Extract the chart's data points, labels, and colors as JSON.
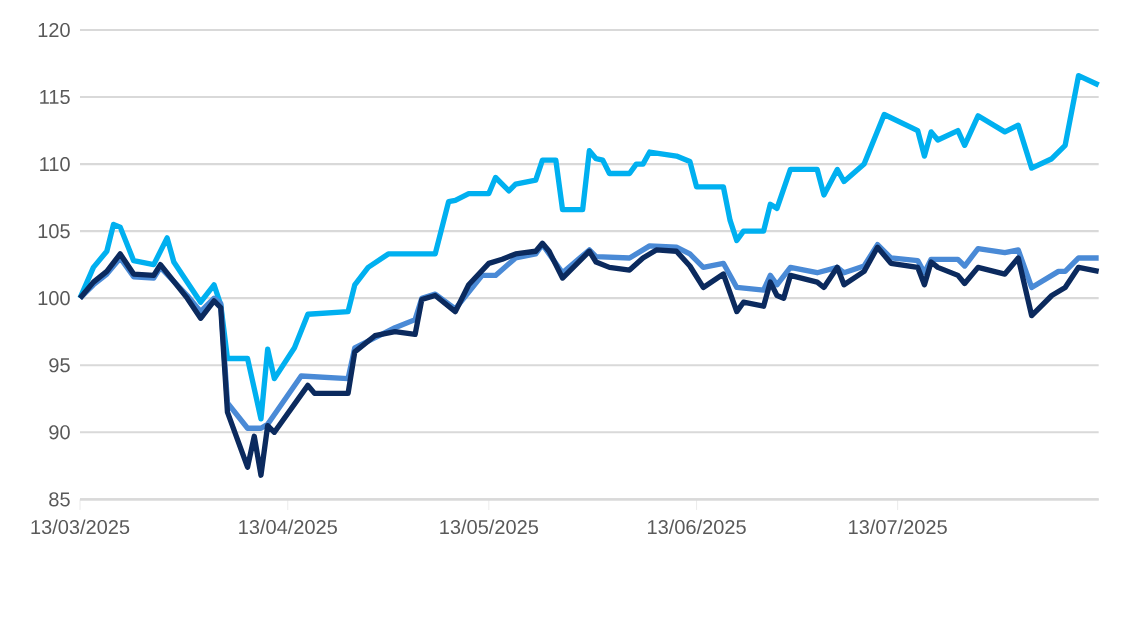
{
  "chart_data": {
    "type": "line",
    "xlim": [
      "2025-03-13",
      "2025-08-12"
    ],
    "xticks": [
      {
        "value": "2025-03-13",
        "label": "13/03/2025"
      },
      {
        "value": "2025-04-13",
        "label": "13/04/2025"
      },
      {
        "value": "2025-05-13",
        "label": "13/05/2025"
      },
      {
        "value": "2025-06-13",
        "label": "13/06/2025"
      },
      {
        "value": "2025-07-13",
        "label": "13/07/2025"
      }
    ],
    "ylim": [
      85,
      120
    ],
    "yticks": [
      85,
      90,
      95,
      100,
      105,
      110,
      115,
      120
    ],
    "grid": "y",
    "marker": "none",
    "line_style": "solid",
    "series": [
      {
        "color": "#00b0f0",
        "x": [
          "2025-03-13",
          "2025-03-15",
          "2025-03-17",
          "2025-03-18",
          "2025-03-19",
          "2025-03-21",
          "2025-03-24",
          "2025-03-26",
          "2025-03-27",
          "2025-03-31",
          "2025-04-02",
          "2025-04-03",
          "2025-04-04",
          "2025-04-07",
          "2025-04-09",
          "2025-04-10",
          "2025-04-11",
          "2025-04-14",
          "2025-04-16",
          "2025-04-22",
          "2025-04-23",
          "2025-04-25",
          "2025-04-28",
          "2025-05-03",
          "2025-05-05",
          "2025-05-07",
          "2025-05-08",
          "2025-05-10",
          "2025-05-13",
          "2025-05-14",
          "2025-05-16",
          "2025-05-17",
          "2025-05-20",
          "2025-05-21",
          "2025-05-23",
          "2025-05-24",
          "2025-05-27",
          "2025-05-28",
          "2025-05-29",
          "2025-05-30",
          "2025-05-31",
          "2025-06-03",
          "2025-06-04",
          "2025-06-05",
          "2025-06-06",
          "2025-06-10",
          "2025-06-12",
          "2025-06-13",
          "2025-06-17",
          "2025-06-18",
          "2025-06-19",
          "2025-06-20",
          "2025-06-23",
          "2025-06-24",
          "2025-06-25",
          "2025-06-27",
          "2025-07-01",
          "2025-07-02",
          "2025-07-04",
          "2025-07-05",
          "2025-07-08",
          "2025-07-11",
          "2025-07-16",
          "2025-07-17",
          "2025-07-18",
          "2025-07-19",
          "2025-07-22",
          "2025-07-23",
          "2025-07-25",
          "2025-07-29",
          "2025-07-31",
          "2025-08-02",
          "2025-08-05",
          "2025-08-07",
          "2025-08-09",
          "2025-08-12"
        ],
        "values": [
          100,
          102.3,
          103.5,
          105.5,
          105.3,
          102.8,
          102.5,
          104.5,
          102.7,
          99.7,
          101,
          99.5,
          95.5,
          95.5,
          91,
          96.2,
          94,
          96.3,
          98.8,
          99,
          101,
          102.3,
          103.3,
          103.3,
          103.3,
          107.2,
          107.3,
          107.8,
          107.8,
          109,
          108,
          108.5,
          108.8,
          110.3,
          110.3,
          106.6,
          106.6,
          111,
          110.4,
          110.3,
          109.3,
          109.3,
          110,
          110,
          110.9,
          110.6,
          110.2,
          108.3,
          108.3,
          105.8,
          104.3,
          105,
          105,
          107,
          106.7,
          109.6,
          109.6,
          107.7,
          109.6,
          108.7,
          110,
          113.7,
          112.5,
          110.6,
          112.4,
          111.8,
          112.5,
          111.4,
          113.6,
          112.4,
          112.9,
          109.7,
          110.4,
          111.4,
          116.6,
          115.9
        ]
      },
      {
        "color": "#4a8ad6",
        "x": [
          "2025-03-13",
          "2025-03-15",
          "2025-03-17",
          "2025-03-19",
          "2025-03-21",
          "2025-03-24",
          "2025-03-25",
          "2025-03-29",
          "2025-03-31",
          "2025-04-02",
          "2025-04-03",
          "2025-04-04",
          "2025-04-07",
          "2025-04-09",
          "2025-04-10",
          "2025-04-15",
          "2025-04-22",
          "2025-04-23",
          "2025-04-29",
          "2025-05-02",
          "2025-05-03",
          "2025-05-05",
          "2025-05-08",
          "2025-05-12",
          "2025-05-14",
          "2025-05-17",
          "2025-05-20",
          "2025-05-21",
          "2025-05-22",
          "2025-05-24",
          "2025-05-28",
          "2025-05-29",
          "2025-06-03",
          "2025-06-06",
          "2025-06-10",
          "2025-06-12",
          "2025-06-14",
          "2025-06-17",
          "2025-06-19",
          "2025-06-23",
          "2025-06-24",
          "2025-06-25",
          "2025-06-27",
          "2025-07-01",
          "2025-07-04",
          "2025-07-05",
          "2025-07-08",
          "2025-07-10",
          "2025-07-12",
          "2025-07-16",
          "2025-07-17",
          "2025-07-18",
          "2025-07-22",
          "2025-07-23",
          "2025-07-25",
          "2025-07-29",
          "2025-07-31",
          "2025-08-02",
          "2025-08-06",
          "2025-08-07",
          "2025-08-09",
          "2025-08-12"
        ],
        "values": [
          100,
          101,
          101.8,
          103,
          101.6,
          101.5,
          102.3,
          100.2,
          99,
          100,
          99.6,
          92.2,
          90.3,
          90.3,
          90.6,
          94.2,
          94,
          96.3,
          97.8,
          98.4,
          100,
          100.3,
          99.2,
          101.7,
          101.7,
          103,
          103.3,
          104,
          103.3,
          101.9,
          103.6,
          103.1,
          103,
          103.9,
          103.8,
          103.3,
          102.3,
          102.6,
          100.8,
          100.6,
          101.7,
          101,
          102.3,
          101.9,
          102.3,
          101.9,
          102.4,
          104,
          103,
          102.8,
          101.9,
          102.9,
          102.9,
          102.4,
          103.7,
          103.4,
          103.6,
          100.8,
          102,
          102,
          103,
          103
        ]
      },
      {
        "color": "#0b2a5e",
        "x": [
          "2025-03-13",
          "2025-03-15",
          "2025-03-17",
          "2025-03-19",
          "2025-03-21",
          "2025-03-24",
          "2025-03-25",
          "2025-03-29",
          "2025-03-31",
          "2025-04-02",
          "2025-04-03",
          "2025-04-04",
          "2025-04-07",
          "2025-04-08",
          "2025-04-09",
          "2025-04-10",
          "2025-04-11",
          "2025-04-16",
          "2025-04-17",
          "2025-04-22",
          "2025-04-23",
          "2025-04-26",
          "2025-04-29",
          "2025-05-02",
          "2025-05-03",
          "2025-05-05",
          "2025-05-08",
          "2025-05-10",
          "2025-05-13",
          "2025-05-15",
          "2025-05-17",
          "2025-05-20",
          "2025-05-21",
          "2025-05-22",
          "2025-05-24",
          "2025-05-28",
          "2025-05-29",
          "2025-05-31",
          "2025-06-03",
          "2025-06-05",
          "2025-06-07",
          "2025-06-10",
          "2025-06-12",
          "2025-06-14",
          "2025-06-17",
          "2025-06-19",
          "2025-06-20",
          "2025-06-23",
          "2025-06-24",
          "2025-06-25",
          "2025-06-26",
          "2025-06-27",
          "2025-07-01",
          "2025-07-02",
          "2025-07-04",
          "2025-07-05",
          "2025-07-08",
          "2025-07-10",
          "2025-07-12",
          "2025-07-16",
          "2025-07-17",
          "2025-07-18",
          "2025-07-19",
          "2025-07-22",
          "2025-07-23",
          "2025-07-25",
          "2025-07-29",
          "2025-07-31",
          "2025-08-02",
          "2025-08-05",
          "2025-08-07",
          "2025-08-09",
          "2025-08-12"
        ],
        "values": [
          100,
          101.2,
          102,
          103.3,
          101.8,
          101.7,
          102.5,
          100,
          98.5,
          99.8,
          99.3,
          91.5,
          87.4,
          89.7,
          86.8,
          90.5,
          90,
          93.5,
          92.9,
          92.9,
          96,
          97.2,
          97.5,
          97.3,
          99.9,
          100.2,
          99,
          101,
          102.6,
          102.9,
          103.3,
          103.5,
          104.1,
          103.5,
          101.5,
          103.5,
          102.7,
          102.3,
          102.1,
          103,
          103.6,
          103.5,
          102.4,
          100.8,
          101.8,
          99,
          99.7,
          99.4,
          101.2,
          100.2,
          100,
          101.7,
          101.2,
          100.8,
          102.3,
          101,
          102,
          103.8,
          102.6,
          102.3,
          101,
          102.7,
          102.3,
          101.7,
          101.1,
          102.3,
          101.8,
          103,
          98.7,
          100.2,
          100.8,
          102.3,
          102
        ]
      }
    ]
  }
}
